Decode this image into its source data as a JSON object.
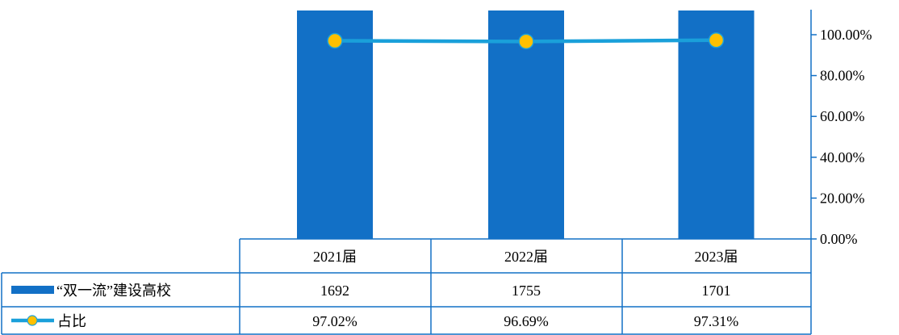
{
  "chart_data": {
    "type": "bar",
    "categories": [
      "2021届",
      "2022届",
      "2023届"
    ],
    "series": [
      {
        "name": "“双一流”建设高校",
        "type": "bar",
        "axis": "none",
        "values": [
          1692,
          1755,
          1701
        ],
        "labels": [
          "1692",
          "1755",
          "1701"
        ],
        "color": "#1270C6"
      },
      {
        "name": "占比",
        "type": "line",
        "axis": "right",
        "values": [
          97.02,
          96.69,
          97.31
        ],
        "labels": [
          "97.02%",
          "96.69%",
          "97.31%"
        ],
        "color": "#1AA0DA",
        "marker_color": "#FFC000"
      }
    ],
    "right_axis": {
      "ticks": [
        "0.00%",
        "20.00%",
        "40.00%",
        "60.00%",
        "80.00%",
        "100.00%"
      ],
      "ylim": [
        0,
        100
      ]
    },
    "bars_clipped_at_top": true,
    "data_table": true,
    "legend_placement": "table-row-headers"
  }
}
